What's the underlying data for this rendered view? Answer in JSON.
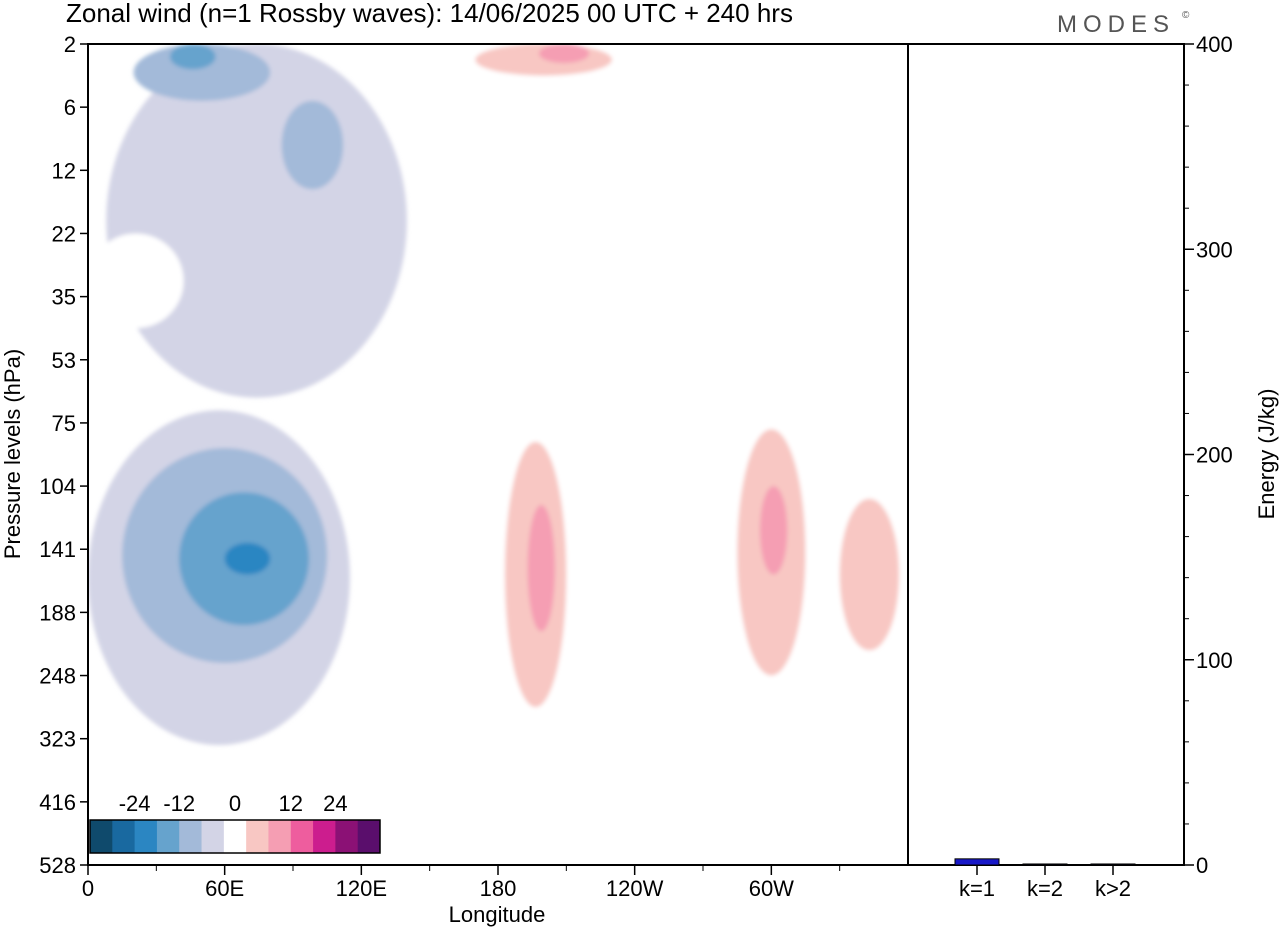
{
  "header": {
    "title": "Zonal wind (n=1 Rossby waves):  14/06/2025  00 UTC  + 240 hrs",
    "logo": "MODES",
    "logo_mark": "©"
  },
  "chart_data": [
    {
      "type": "heatmap",
      "title": "Zonal wind (n=1 Rossby waves):  14/06/2025  00 UTC  + 240 hrs",
      "xlabel": "Longitude",
      "ylabel": "Pressure levels (hPa)",
      "x_ticks": [
        "0",
        "60E",
        "120E",
        "180",
        "120W",
        "60W"
      ],
      "x_tick_values": [
        0,
        60,
        120,
        180,
        240,
        300
      ],
      "xlim": [
        0,
        360
      ],
      "y_ticks": [
        "2",
        "6",
        "12",
        "22",
        "35",
        "53",
        "75",
        "104",
        "141",
        "188",
        "248",
        "323",
        "416",
        "528"
      ],
      "y_scale": "level index, top to bottom",
      "grid": false,
      "colorbar": {
        "placement": "bottom-left",
        "tick_labels": [
          "-24",
          "-12",
          "0",
          "12",
          "24"
        ],
        "levels": [
          -30,
          -24,
          -18,
          -12,
          -6,
          -3,
          3,
          6,
          12,
          18,
          24,
          30
        ],
        "colors": [
          "#0f4a6c",
          "#1969a0",
          "#2b86c2",
          "#66a3cd",
          "#a3bad9",
          "#d3d4e6",
          "#ffffff",
          "#f8c7c3",
          "#f59eb3",
          "#ee5d9e",
          "#cc1d8e",
          "#8b1175",
          "#5a0e6c"
        ]
      },
      "regions": [
        {
          "lon": [
            8,
            140
          ],
          "lev": [
            0,
            5.6
          ],
          "value": -3
        },
        {
          "lon": [
            85,
            112
          ],
          "lev": [
            0.9,
            2.3
          ],
          "value": -6
        },
        {
          "lon": [
            20,
            80
          ],
          "lev": [
            0,
            0.9
          ],
          "value": -6
        },
        {
          "lon": [
            36,
            56
          ],
          "lev": [
            0,
            0.4
          ],
          "value": -12
        },
        {
          "lon": [
            0,
            115
          ],
          "lev": [
            5.8,
            11.1
          ],
          "value": -3
        },
        {
          "lon": [
            15,
            105
          ],
          "lev": [
            6.4,
            9.8
          ],
          "value": -6
        },
        {
          "lon": [
            40,
            97
          ],
          "lev": [
            7.1,
            9.2
          ],
          "value": -12
        },
        {
          "lon": [
            60,
            80
          ],
          "lev": [
            7.9,
            8.4
          ],
          "value": -18
        },
        {
          "lon": [
            155,
            355
          ],
          "lev": [
            4.9,
            11.4
          ],
          "value": 3
        },
        {
          "lon": [
            183,
            210
          ],
          "lev": [
            6.3,
            10.5
          ],
          "value": 6
        },
        {
          "lon": [
            285,
            315
          ],
          "lev": [
            6.1,
            10.0
          ],
          "value": 6
        },
        {
          "lon": [
            330,
            356
          ],
          "lev": [
            7.2,
            9.6
          ],
          "value": 6
        },
        {
          "lon": [
            193,
            205
          ],
          "lev": [
            7.3,
            9.3
          ],
          "value": 12
        },
        {
          "lon": [
            295,
            307
          ],
          "lev": [
            7.0,
            8.4
          ],
          "value": 12
        },
        {
          "lon": [
            150,
            240
          ],
          "lev": [
            0,
            1.5
          ],
          "value": 3
        },
        {
          "lon": [
            170,
            230
          ],
          "lev": [
            0,
            0.5
          ],
          "value": 6
        },
        {
          "lon": [
            198,
            220
          ],
          "lev": [
            0,
            0.3
          ],
          "value": 12
        },
        {
          "lon": [
            300,
            360
          ],
          "lev": [
            0.5,
            2.2
          ],
          "value": 3
        },
        {
          "lon": [
            0,
            42
          ],
          "lev": [
            3.0,
            4.5
          ],
          "value": 3
        },
        {
          "lon": [
            0,
            5
          ],
          "lev": [
            1.0,
            2.1
          ],
          "value": 3
        }
      ]
    },
    {
      "type": "bar",
      "categories": [
        "k=1",
        "k=2",
        "k>2"
      ],
      "values": [
        3,
        0.5,
        0.5
      ],
      "ylabel": "Energy (J/kg)",
      "ylim": [
        0,
        400
      ],
      "y_ticks": [
        0,
        100,
        200,
        300,
        400
      ],
      "bar_color": "#1818c8"
    }
  ]
}
